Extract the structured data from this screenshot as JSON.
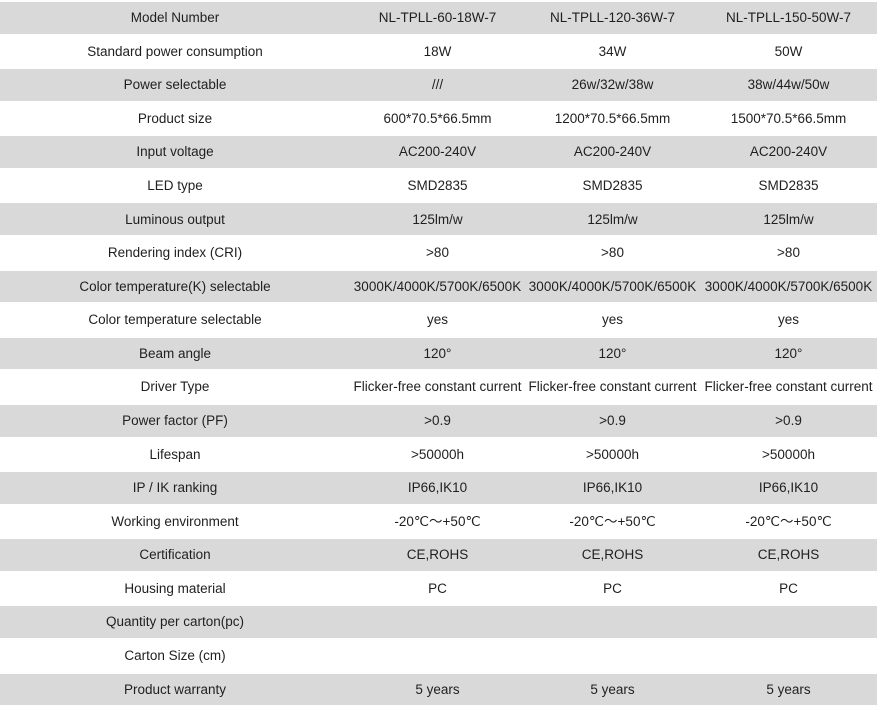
{
  "table": {
    "colors": {
      "row_stripe": "#d9d9d9",
      "row_alt": "#ffffff",
      "text": "#1f1f1f"
    },
    "rows": [
      {
        "label": "Model Number",
        "values": [
          "NL-TPLL-60-18W-7",
          "NL-TPLL-120-36W-7",
          "NL-TPLL-150-50W-7"
        ]
      },
      {
        "label": "Standard power consumption",
        "values": [
          "18W",
          "34W",
          "50W"
        ]
      },
      {
        "label": "Power selectable",
        "values": [
          "///",
          "26w/32w/38w",
          "38w/44w/50w"
        ]
      },
      {
        "label": "Product size",
        "values": [
          "600*70.5*66.5mm",
          "1200*70.5*66.5mm",
          "1500*70.5*66.5mm"
        ]
      },
      {
        "label": "Input voltage",
        "values": [
          "AC200-240V",
          "AC200-240V",
          "AC200-240V"
        ]
      },
      {
        "label": "LED type",
        "values": [
          "SMD2835",
          "SMD2835",
          "SMD2835"
        ]
      },
      {
        "label": "Luminous output",
        "values": [
          "125lm/w",
          "125lm/w",
          "125lm/w"
        ]
      },
      {
        "label": "Rendering index (CRI)",
        "values": [
          ">80",
          ">80",
          ">80"
        ]
      },
      {
        "label": "Color temperature(K) selectable",
        "values": [
          "3000K/4000K/5700K/6500K",
          "3000K/4000K/5700K/6500K",
          "3000K/4000K/5700K/6500K"
        ]
      },
      {
        "label": "Color temperature selectable",
        "values": [
          "yes",
          "yes",
          "yes"
        ]
      },
      {
        "label": "Beam angle",
        "values": [
          "120°",
          "120°",
          "120°"
        ]
      },
      {
        "label": "Driver Type",
        "values": [
          "Flicker-free constant current",
          "Flicker-free constant current",
          "Flicker-free constant current"
        ]
      },
      {
        "label": "Power factor (PF)",
        "values": [
          ">0.9",
          ">0.9",
          ">0.9"
        ]
      },
      {
        "label": "Lifespan",
        "values": [
          ">50000h",
          ">50000h",
          ">50000h"
        ]
      },
      {
        "label": "IP / IK ranking",
        "values": [
          "IP66,IK10",
          "IP66,IK10",
          "IP66,IK10"
        ]
      },
      {
        "label": "Working environment",
        "values": [
          "-20℃～+50℃",
          "-20℃～+50℃",
          "-20℃～+50℃"
        ]
      },
      {
        "label": "Certification",
        "values": [
          "CE,ROHS",
          "CE,ROHS",
          "CE,ROHS"
        ]
      },
      {
        "label": "Housing material",
        "values": [
          "PC",
          "PC",
          "PC"
        ]
      },
      {
        "label": "Quantity per carton(pc)",
        "values": [
          "",
          "",
          ""
        ]
      },
      {
        "label": "Carton Size (cm)",
        "values": [
          "",
          "",
          ""
        ]
      },
      {
        "label": "Product warranty",
        "values": [
          "5 years",
          "5 years",
          "5 years"
        ]
      }
    ]
  }
}
